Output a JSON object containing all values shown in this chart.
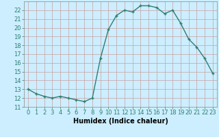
{
  "x": [
    0,
    1,
    2,
    3,
    4,
    5,
    6,
    7,
    8,
    9,
    10,
    11,
    12,
    13,
    14,
    15,
    16,
    17,
    18,
    19,
    20,
    21,
    22,
    23
  ],
  "y": [
    13,
    12.5,
    12.2,
    12.0,
    12.2,
    12.0,
    11.8,
    11.6,
    12.0,
    16.5,
    19.8,
    21.4,
    22.0,
    21.8,
    22.5,
    22.5,
    22.3,
    21.6,
    22.0,
    20.5,
    18.7,
    17.8,
    16.5,
    14.8
  ],
  "line_color": "#2e7d72",
  "marker": "+",
  "bg_color": "#cceeff",
  "grid_color": "#c8a0a0",
  "xlabel": "Humidex (Indice chaleur)",
  "xlim": [
    -0.5,
    23.5
  ],
  "ylim": [
    11,
    23
  ],
  "xticks": [
    0,
    1,
    2,
    3,
    4,
    5,
    6,
    7,
    8,
    9,
    10,
    11,
    12,
    13,
    14,
    15,
    16,
    17,
    18,
    19,
    20,
    21,
    22,
    23
  ],
  "yticks": [
    11,
    12,
    13,
    14,
    15,
    16,
    17,
    18,
    19,
    20,
    21,
    22
  ],
  "xlabel_fontsize": 7,
  "tick_fontsize": 6,
  "linewidth": 1.0,
  "markersize": 3
}
